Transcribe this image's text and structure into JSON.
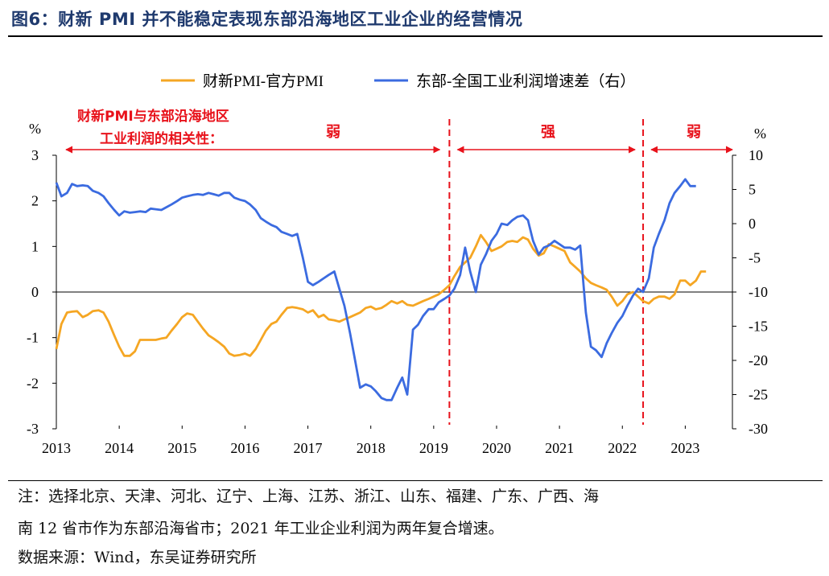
{
  "title": "图6：财新 PMI 并不能稳定表现东部沿海地区工业企业的经营情况",
  "notes": {
    "line1": "注：选择北京、天津、河北、辽宁、上海、江苏、浙江、山东、福建、广东、广西、海",
    "line2": "南 12 省市作为东部沿海省市；2021 年工业企业利润为两年复合增速。",
    "source": "数据来源：Wind，东吴证券研究所"
  },
  "annotations": {
    "corr_line1": "财新PMI与东部沿海地区",
    "corr_line2": "工业利润的相关性：",
    "weak1": "弱",
    "strong": "强",
    "weak2": "弱"
  },
  "colors": {
    "pmi": "#f5a623",
    "profit": "#3b6be0",
    "annotation": "#e8121b",
    "axis": "#000000"
  },
  "chart_data": {
    "type": "line",
    "title": "",
    "y_left": {
      "unit": "%",
      "range": [
        -3,
        3
      ],
      "ticks": [
        "3",
        "2",
        "1",
        "0",
        "-1",
        "-2",
        "-3"
      ]
    },
    "y_right": {
      "unit": "%",
      "range": [
        -30,
        10
      ],
      "ticks": [
        "10",
        "5",
        "0",
        "-5",
        "-10",
        "-15",
        "-20",
        "-25",
        "-30"
      ]
    },
    "x_axis": {
      "range": [
        2013,
        2023.75
      ],
      "ticks": [
        "2013",
        "2014",
        "2015",
        "2016",
        "2017",
        "2018",
        "2019",
        "2020",
        "2021",
        "2022",
        "2023"
      ]
    },
    "dividers": [
      2019.25,
      2022.33
    ],
    "legend": {
      "placement": "top"
    },
    "series": [
      {
        "name": "财新PMI-官方PMI",
        "axis": "left",
        "points": [
          [
            2013.0,
            -1.25
          ],
          [
            2013.08,
            -0.7
          ],
          [
            2013.17,
            -0.45
          ],
          [
            2013.25,
            -0.43
          ],
          [
            2013.33,
            -0.42
          ],
          [
            2013.42,
            -0.55
          ],
          [
            2013.5,
            -0.5
          ],
          [
            2013.58,
            -0.42
          ],
          [
            2013.67,
            -0.4
          ],
          [
            2013.75,
            -0.45
          ],
          [
            2013.83,
            -0.65
          ],
          [
            2013.92,
            -0.95
          ],
          [
            2014.0,
            -1.2
          ],
          [
            2014.08,
            -1.4
          ],
          [
            2014.17,
            -1.4
          ],
          [
            2014.25,
            -1.3
          ],
          [
            2014.33,
            -1.05
          ],
          [
            2014.42,
            -1.05
          ],
          [
            2014.5,
            -1.05
          ],
          [
            2014.58,
            -1.05
          ],
          [
            2014.67,
            -1.02
          ],
          [
            2014.75,
            -1.0
          ],
          [
            2014.83,
            -0.85
          ],
          [
            2014.92,
            -0.7
          ],
          [
            2015.0,
            -0.55
          ],
          [
            2015.08,
            -0.47
          ],
          [
            2015.17,
            -0.5
          ],
          [
            2015.25,
            -0.65
          ],
          [
            2015.33,
            -0.8
          ],
          [
            2015.42,
            -0.95
          ],
          [
            2015.5,
            -1.02
          ],
          [
            2015.58,
            -1.1
          ],
          [
            2015.67,
            -1.2
          ],
          [
            2015.75,
            -1.35
          ],
          [
            2015.83,
            -1.4
          ],
          [
            2015.92,
            -1.38
          ],
          [
            2016.0,
            -1.35
          ],
          [
            2016.08,
            -1.4
          ],
          [
            2016.17,
            -1.25
          ],
          [
            2016.25,
            -1.05
          ],
          [
            2016.33,
            -0.85
          ],
          [
            2016.42,
            -0.7
          ],
          [
            2016.5,
            -0.65
          ],
          [
            2016.58,
            -0.5
          ],
          [
            2016.67,
            -0.35
          ],
          [
            2016.75,
            -0.33
          ],
          [
            2016.83,
            -0.35
          ],
          [
            2016.92,
            -0.38
          ],
          [
            2017.0,
            -0.45
          ],
          [
            2017.08,
            -0.4
          ],
          [
            2017.17,
            -0.55
          ],
          [
            2017.25,
            -0.5
          ],
          [
            2017.33,
            -0.6
          ],
          [
            2017.42,
            -0.62
          ],
          [
            2017.5,
            -0.65
          ],
          [
            2017.58,
            -0.6
          ],
          [
            2017.67,
            -0.55
          ],
          [
            2017.75,
            -0.5
          ],
          [
            2017.83,
            -0.45
          ],
          [
            2017.92,
            -0.35
          ],
          [
            2018.0,
            -0.32
          ],
          [
            2018.08,
            -0.38
          ],
          [
            2018.17,
            -0.35
          ],
          [
            2018.25,
            -0.28
          ],
          [
            2018.33,
            -0.2
          ],
          [
            2018.42,
            -0.25
          ],
          [
            2018.5,
            -0.2
          ],
          [
            2018.58,
            -0.28
          ],
          [
            2018.67,
            -0.3
          ],
          [
            2018.75,
            -0.25
          ],
          [
            2018.83,
            -0.2
          ],
          [
            2018.92,
            -0.15
          ],
          [
            2019.0,
            -0.1
          ],
          [
            2019.08,
            -0.05
          ],
          [
            2019.17,
            0.05
          ],
          [
            2019.25,
            0.15
          ],
          [
            2019.33,
            0.35
          ],
          [
            2019.42,
            0.55
          ],
          [
            2019.5,
            0.65
          ],
          [
            2019.58,
            0.75
          ],
          [
            2019.67,
            1.0
          ],
          [
            2019.75,
            1.25
          ],
          [
            2019.83,
            1.1
          ],
          [
            2019.92,
            0.9
          ],
          [
            2020.0,
            0.95
          ],
          [
            2020.08,
            1.0
          ],
          [
            2020.17,
            1.1
          ],
          [
            2020.25,
            1.12
          ],
          [
            2020.33,
            1.1
          ],
          [
            2020.42,
            1.2
          ],
          [
            2020.5,
            1.15
          ],
          [
            2020.58,
            0.95
          ],
          [
            2020.67,
            0.8
          ],
          [
            2020.75,
            0.85
          ],
          [
            2020.83,
            1.05
          ],
          [
            2020.92,
            1.0
          ],
          [
            2021.0,
            0.95
          ],
          [
            2021.08,
            0.9
          ],
          [
            2021.17,
            0.65
          ],
          [
            2021.25,
            0.55
          ],
          [
            2021.33,
            0.45
          ],
          [
            2021.42,
            0.3
          ],
          [
            2021.5,
            0.2
          ],
          [
            2021.58,
            0.15
          ],
          [
            2021.67,
            0.1
          ],
          [
            2021.75,
            0.05
          ],
          [
            2021.83,
            -0.1
          ],
          [
            2021.92,
            -0.3
          ],
          [
            2022.0,
            -0.2
          ],
          [
            2022.08,
            -0.05
          ],
          [
            2022.17,
            0.0
          ],
          [
            2022.25,
            -0.1
          ],
          [
            2022.33,
            -0.2
          ],
          [
            2022.42,
            -0.25
          ],
          [
            2022.5,
            -0.15
          ],
          [
            2022.58,
            -0.1
          ],
          [
            2022.67,
            -0.1
          ],
          [
            2022.75,
            -0.15
          ],
          [
            2022.83,
            -0.05
          ],
          [
            2022.92,
            0.25
          ],
          [
            2023.0,
            0.25
          ],
          [
            2023.08,
            0.15
          ],
          [
            2023.17,
            0.25
          ],
          [
            2023.25,
            0.45
          ],
          [
            2023.33,
            0.45
          ]
        ]
      },
      {
        "name": "东部-全国工业利润增速差（右）",
        "axis": "right",
        "points": [
          [
            2013.0,
            6.0
          ],
          [
            2013.08,
            4.0
          ],
          [
            2013.17,
            4.5
          ],
          [
            2013.25,
            5.8
          ],
          [
            2013.33,
            5.5
          ],
          [
            2013.42,
            5.6
          ],
          [
            2013.5,
            5.5
          ],
          [
            2013.58,
            4.8
          ],
          [
            2013.67,
            4.5
          ],
          [
            2013.75,
            4.0
          ],
          [
            2013.83,
            3.0
          ],
          [
            2013.92,
            2.0
          ],
          [
            2014.0,
            1.2
          ],
          [
            2014.08,
            1.8
          ],
          [
            2014.17,
            1.6
          ],
          [
            2014.25,
            1.7
          ],
          [
            2014.33,
            1.8
          ],
          [
            2014.42,
            1.7
          ],
          [
            2014.5,
            2.2
          ],
          [
            2014.58,
            2.1
          ],
          [
            2014.67,
            2.0
          ],
          [
            2014.75,
            2.4
          ],
          [
            2014.83,
            2.8
          ],
          [
            2014.92,
            3.3
          ],
          [
            2015.0,
            3.8
          ],
          [
            2015.08,
            4.0
          ],
          [
            2015.17,
            4.2
          ],
          [
            2015.25,
            4.3
          ],
          [
            2015.33,
            4.2
          ],
          [
            2015.42,
            4.5
          ],
          [
            2015.5,
            4.3
          ],
          [
            2015.58,
            4.1
          ],
          [
            2015.67,
            4.5
          ],
          [
            2015.75,
            4.5
          ],
          [
            2015.83,
            3.8
          ],
          [
            2015.92,
            3.5
          ],
          [
            2016.0,
            3.3
          ],
          [
            2016.08,
            2.8
          ],
          [
            2016.17,
            2.0
          ],
          [
            2016.25,
            0.8
          ],
          [
            2016.33,
            0.3
          ],
          [
            2016.42,
            -0.2
          ],
          [
            2016.5,
            -0.5
          ],
          [
            2016.58,
            -1.2
          ],
          [
            2016.67,
            -1.5
          ],
          [
            2016.75,
            -1.8
          ],
          [
            2016.83,
            -1.5
          ],
          [
            2016.92,
            -5.0
          ],
          [
            2017.0,
            -8.5
          ],
          [
            2017.08,
            -9.0
          ],
          [
            2017.17,
            -8.5
          ],
          [
            2017.25,
            -8.0
          ],
          [
            2017.33,
            -7.5
          ],
          [
            2017.42,
            -7.0
          ],
          [
            2017.5,
            -9.5
          ],
          [
            2017.58,
            -12.0
          ],
          [
            2017.67,
            -16.0
          ],
          [
            2017.75,
            -20.0
          ],
          [
            2017.83,
            -24.0
          ],
          [
            2017.92,
            -23.5
          ],
          [
            2018.0,
            -23.8
          ],
          [
            2018.08,
            -24.5
          ],
          [
            2018.17,
            -25.5
          ],
          [
            2018.25,
            -25.8
          ],
          [
            2018.33,
            -25.8
          ],
          [
            2018.42,
            -24.0
          ],
          [
            2018.5,
            -22.5
          ],
          [
            2018.58,
            -25.0
          ],
          [
            2018.67,
            -15.5
          ],
          [
            2018.75,
            -14.8
          ],
          [
            2018.83,
            -13.5
          ],
          [
            2018.92,
            -12.5
          ],
          [
            2019.0,
            -12.5
          ],
          [
            2019.08,
            -11.5
          ],
          [
            2019.17,
            -11.0
          ],
          [
            2019.25,
            -10.5
          ],
          [
            2019.33,
            -9.5
          ],
          [
            2019.42,
            -7.5
          ],
          [
            2019.5,
            -3.5
          ],
          [
            2019.58,
            -7.0
          ],
          [
            2019.67,
            -10.0
          ],
          [
            2019.75,
            -6.0
          ],
          [
            2019.83,
            -4.5
          ],
          [
            2019.92,
            -2.5
          ],
          [
            2020.0,
            -1.5
          ],
          [
            2020.08,
            0.0
          ],
          [
            2020.17,
            -0.2
          ],
          [
            2020.25,
            0.5
          ],
          [
            2020.33,
            1.0
          ],
          [
            2020.42,
            1.2
          ],
          [
            2020.5,
            0.5
          ],
          [
            2020.58,
            -2.5
          ],
          [
            2020.67,
            -4.5
          ],
          [
            2020.75,
            -3.5
          ],
          [
            2020.83,
            -3.2
          ],
          [
            2020.92,
            -2.5
          ],
          [
            2021.0,
            -3.0
          ],
          [
            2021.08,
            -3.5
          ],
          [
            2021.17,
            -3.5
          ],
          [
            2021.25,
            -3.8
          ],
          [
            2021.33,
            -3.2
          ],
          [
            2021.42,
            -13.0
          ],
          [
            2021.5,
            -18.0
          ],
          [
            2021.58,
            -18.5
          ],
          [
            2021.67,
            -19.5
          ],
          [
            2021.75,
            -17.5
          ],
          [
            2021.83,
            -16.0
          ],
          [
            2021.92,
            -14.5
          ],
          [
            2022.0,
            -13.5
          ],
          [
            2022.08,
            -12.0
          ],
          [
            2022.17,
            -10.5
          ],
          [
            2022.25,
            -9.5
          ],
          [
            2022.33,
            -10.0
          ],
          [
            2022.42,
            -8.0
          ],
          [
            2022.5,
            -3.5
          ],
          [
            2022.58,
            -1.5
          ],
          [
            2022.67,
            0.5
          ],
          [
            2022.75,
            3.0
          ],
          [
            2022.83,
            4.5
          ],
          [
            2022.92,
            5.5
          ],
          [
            2023.0,
            6.5
          ],
          [
            2023.08,
            5.5
          ],
          [
            2023.17,
            5.5
          ]
        ]
      }
    ]
  }
}
